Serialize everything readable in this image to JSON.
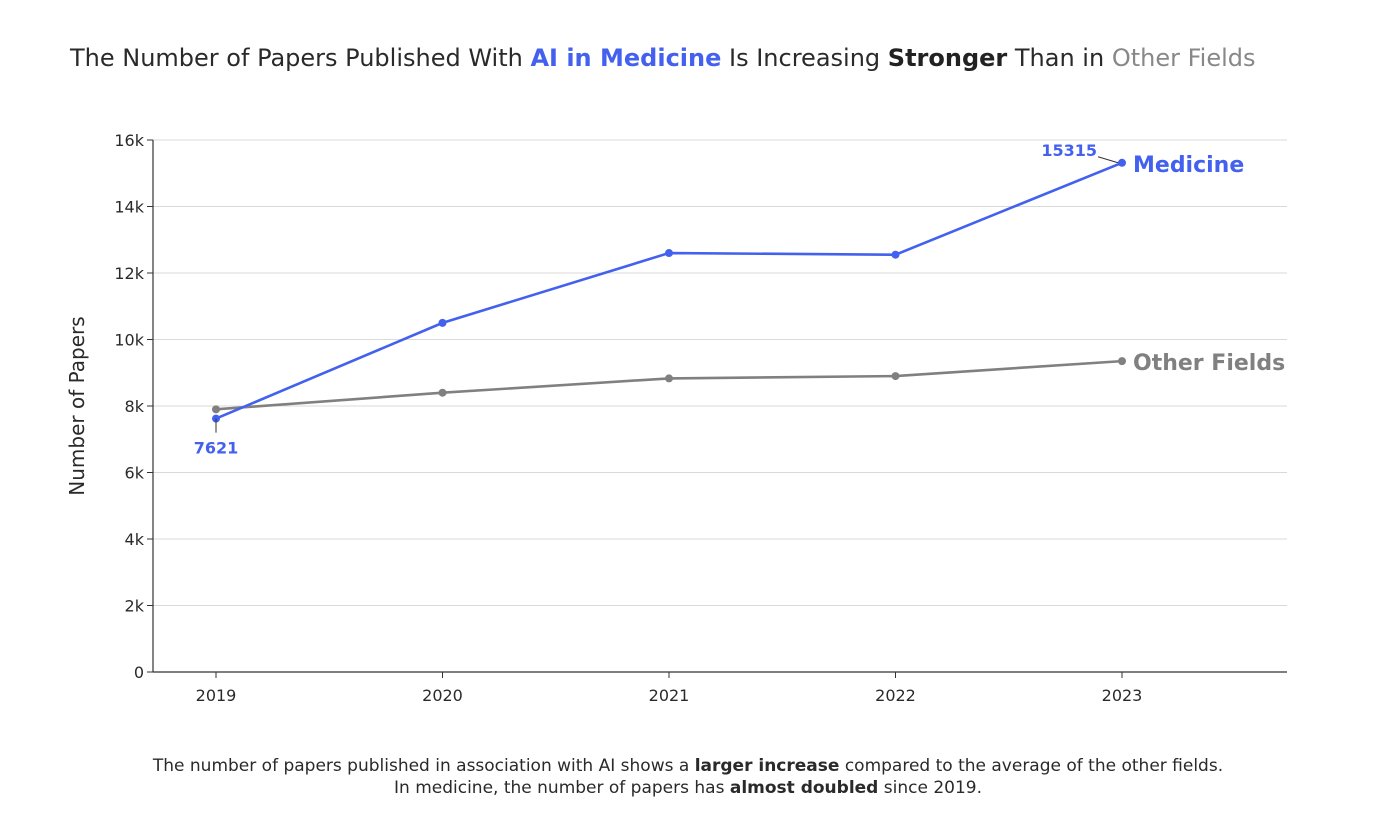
{
  "title": {
    "part1": "The Number of Papers Published With ",
    "highlight_medicine": "AI in Medicine",
    "part2": " Is Increasing ",
    "highlight_stronger": "Stronger",
    "part3": " Than in ",
    "highlight_other": "Other Fields"
  },
  "caption": {
    "line1_a": "The number of papers published in association with AI shows a ",
    "line1_bold": "larger increase",
    "line1_b": " compared to the average of the other fields.",
    "line2_a": "In medicine, the number of papers has ",
    "line2_bold": "almost doubled",
    "line2_b": " since 2019."
  },
  "colors": {
    "medicine": "#4361ee",
    "other": "#808080",
    "grid": "#d9d9d9",
    "axis": "#333333"
  },
  "chart_data": {
    "type": "line",
    "x": [
      2019,
      2020,
      2021,
      2022,
      2023
    ],
    "xlabel": "",
    "ylabel": "Number of Papers",
    "ylim": [
      0,
      16000
    ],
    "yticks": [
      0,
      2000,
      4000,
      6000,
      8000,
      10000,
      12000,
      14000,
      16000
    ],
    "ytick_labels": [
      "0",
      "2k",
      "4k",
      "6k",
      "8k",
      "10k",
      "12k",
      "14k",
      "16k"
    ],
    "grid": "horizontal",
    "series": [
      {
        "name": "Medicine",
        "color": "#4361ee",
        "values": [
          7621,
          10500,
          12600,
          12550,
          15315
        ],
        "labels": {
          "0": "7621",
          "4": "15315"
        }
      },
      {
        "name": "Other Fields",
        "color": "#808080",
        "values": [
          7900,
          8400,
          8830,
          8900,
          9350
        ]
      }
    ]
  }
}
